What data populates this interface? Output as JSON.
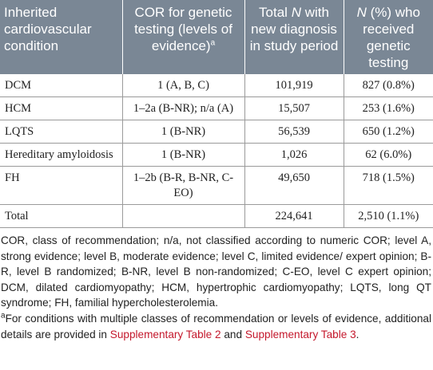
{
  "table": {
    "headers": [
      {
        "text": "Inherited cardiovascular condition",
        "sup": ""
      },
      {
        "text": "COR for genetic testing (levels of evidence)",
        "sup": "a"
      },
      {
        "text_parts": [
          "Total ",
          "N",
          " with new diagnosis in study period"
        ]
      },
      {
        "text_parts": [
          "N",
          " (%) who received genetic testing"
        ]
      }
    ],
    "rows": [
      {
        "condition": "DCM",
        "cor": "1 (A, B, C)",
        "total": "101,919",
        "tested": "827 (0.8%)"
      },
      {
        "condition": "HCM",
        "cor": "1–2a (B-NR); n/a (A)",
        "total": "15,507",
        "tested": "253 (1.6%)"
      },
      {
        "condition": "LQTS",
        "cor": "1 (B-NR)",
        "total": "56,539",
        "tested": "650 (1.2%)"
      },
      {
        "condition": "Hereditary amyloidosis",
        "cor": "1 (B-NR)",
        "total": "1,026",
        "tested": "62 (6.0%)"
      },
      {
        "condition": "FH",
        "cor": "1–2b (B-R, B-NR, C-EO)",
        "total": "49,650",
        "tested": "718 (1.5%)"
      },
      {
        "condition": "Total",
        "cor": "",
        "total": "224,641",
        "tested": "2,510 (1.1%)"
      }
    ]
  },
  "notes": {
    "abbreviations": "COR, class of recommendation; n/a, not classified according to numeric COR; level A, strong evidence; level B, moderate evidence; level C, limited evidence/ expert opinion; B-R, level B randomized; B-NR, level B non-randomized; C-EO, level C expert opinion; DCM, dilated cardiomyopathy; HCM, hypertrophic cardiomyopathy; LQTS, long QT syndrome; FH, familial hypercholesterolemia.",
    "footnote_marker": "a",
    "footnote_text_1": "For conditions with multiple classes of recommendation or levels of evidence, additional details are provided in ",
    "footnote_link_1": "Supplementary Table 2",
    "footnote_text_2": " and ",
    "footnote_link_2": "Supplementary Table 3",
    "footnote_text_3": "."
  }
}
